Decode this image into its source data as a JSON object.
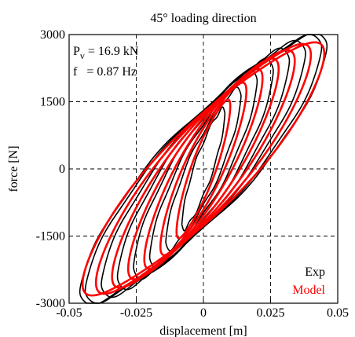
{
  "chart_data": {
    "type": "line",
    "title": "45° loading direction",
    "xlabel": "displacement [m]",
    "ylabel": "force [N]",
    "xlim": [
      -0.05,
      0.05
    ],
    "ylim": [
      -3000,
      3000
    ],
    "xticks": [
      -0.05,
      -0.025,
      0,
      0.025,
      0.05
    ],
    "xtick_labels": [
      "-0.05",
      "-0.025",
      "0",
      "0.025",
      "0.05"
    ],
    "yticks": [
      -3000,
      -1500,
      0,
      1500,
      3000
    ],
    "ytick_labels": [
      "-3000",
      "-1500",
      "0",
      "1500",
      "3000"
    ],
    "grid": "dashed at x=-0.025, 0, 0.025 and y=-1500, 0, 1500",
    "legend_position": "bottom-right",
    "annotations": {
      "pv_symbol": "P",
      "pv_subscript": "v",
      "pv_value": " = 16.9 kN",
      "f_line": "f   = 0.87 Hz"
    },
    "series": [
      {
        "name": "Exp",
        "color": "#000000",
        "loops": [
          {
            "amp": 0.008,
            "fmax": 1100,
            "width": 1100
          },
          {
            "amp": 0.014,
            "fmax": 1450,
            "width": 1500
          },
          {
            "amp": 0.02,
            "fmax": 1750,
            "width": 1850
          },
          {
            "amp": 0.026,
            "fmax": 1950,
            "width": 2100
          },
          {
            "amp": 0.032,
            "fmax": 2150,
            "width": 2250
          },
          {
            "amp": 0.038,
            "fmax": 2300,
            "width": 2350
          },
          {
            "amp": 0.044,
            "fmax": 2420,
            "width": 2420
          },
          {
            "amp": 0.046,
            "fmax": 2450,
            "width": 2450
          }
        ]
      },
      {
        "name": "Model",
        "color": "#ff0000",
        "loops": [
          {
            "amp": 0.01,
            "fmax": 1250,
            "width": 1300
          },
          {
            "amp": 0.016,
            "fmax": 1550,
            "width": 1650
          },
          {
            "amp": 0.022,
            "fmax": 1800,
            "width": 1900
          },
          {
            "amp": 0.028,
            "fmax": 1990,
            "width": 2080
          },
          {
            "amp": 0.034,
            "fmax": 2150,
            "width": 2200
          },
          {
            "amp": 0.04,
            "fmax": 2270,
            "width": 2270
          },
          {
            "amp": 0.045,
            "fmax": 2300,
            "width": 2300
          }
        ]
      }
    ]
  }
}
